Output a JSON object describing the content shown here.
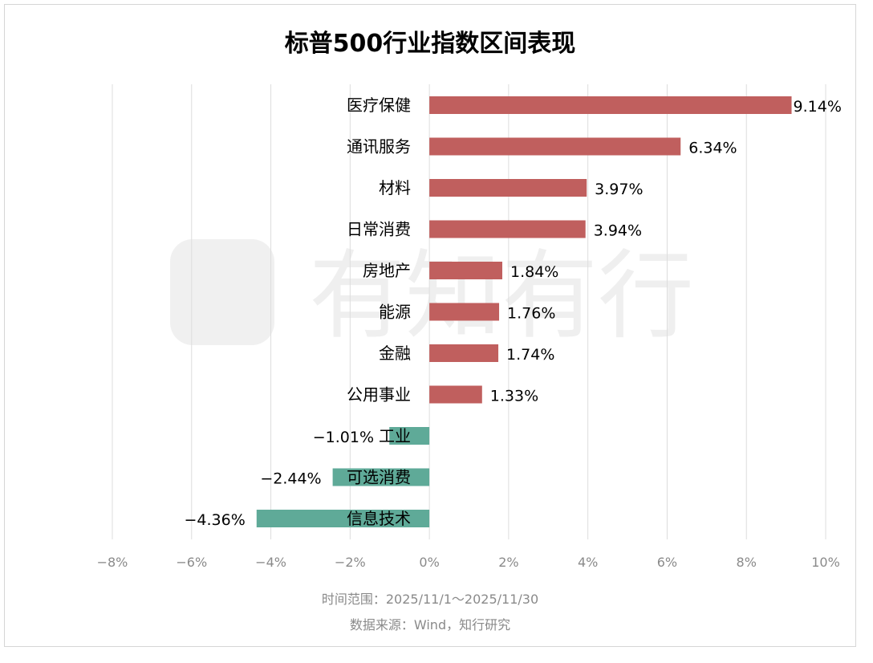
{
  "watermark": "有知有行",
  "colors": {
    "positive": "#c05f5e",
    "negative": "#5faa98",
    "grid": "#dddddd",
    "tick": "#8a8a8a"
  },
  "chart_data": {
    "type": "bar",
    "orientation": "horizontal",
    "title": "标普500行业指数区间表现",
    "categories": [
      "医疗保健",
      "通讯服务",
      "材料",
      "日常消费",
      "房地产",
      "能源",
      "金融",
      "公用事业",
      "工业",
      "可选消费",
      "信息技术"
    ],
    "values": [
      9.14,
      6.34,
      3.97,
      3.94,
      1.84,
      1.76,
      1.74,
      1.33,
      -1.01,
      -2.44,
      -4.36
    ],
    "value_labels": [
      "9.14%",
      "6.34%",
      "3.97%",
      "3.94%",
      "1.84%",
      "1.76%",
      "1.74%",
      "1.33%",
      "−1.01%",
      "−2.44%",
      "−4.36%"
    ],
    "xlim": [
      -8,
      10
    ],
    "xticks": [
      -8,
      -6,
      -4,
      -2,
      0,
      2,
      4,
      6,
      8,
      10
    ],
    "xtick_labels": [
      "−8%",
      "−6%",
      "−4%",
      "−2%",
      "0%",
      "2%",
      "4%",
      "6%",
      "8%",
      "10%"
    ],
    "grid": true,
    "xlabel": "",
    "ylabel": ""
  },
  "footer": {
    "period": "时间范围：2025/11/1～2025/11/30",
    "source": "数据来源：Wind，知行研究"
  }
}
